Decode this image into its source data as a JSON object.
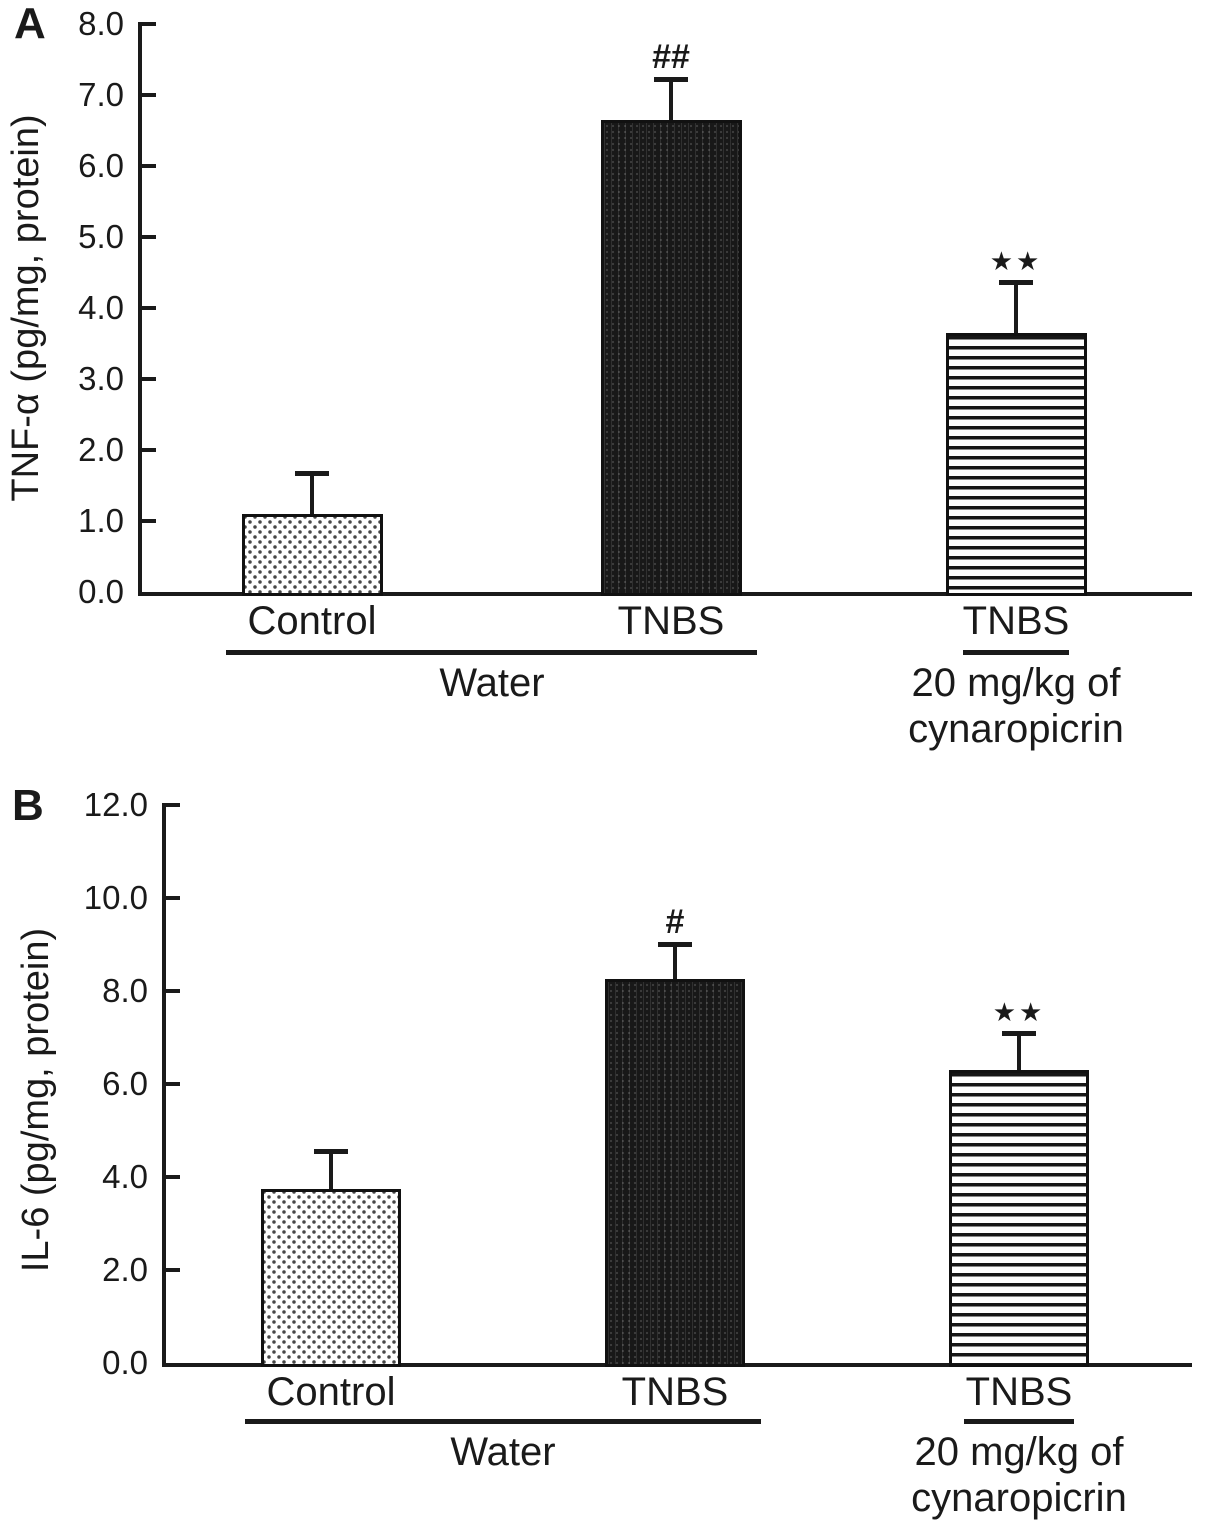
{
  "figure": {
    "background": "#ffffff",
    "ink_color": "#1a1a1a"
  },
  "chart_data": [
    {
      "type": "bar",
      "panel_label": "A",
      "title": "",
      "xlabel": "",
      "ylabel": "TNF-α (pg/mg, protein)",
      "ylim": [
        0.0,
        8.0
      ],
      "ytick_step": 1.0,
      "ytick_labels": [
        "0.0",
        "1.0",
        "2.0",
        "3.0",
        "4.0",
        "5.0",
        "6.0",
        "7.0",
        "8.0"
      ],
      "grid": false,
      "legend": "none",
      "categories": [
        "Control",
        "TNBS",
        "TNBS"
      ],
      "values": [
        1.1,
        6.65,
        3.65
      ],
      "errors_upper": [
        0.6,
        0.6,
        0.75
      ],
      "significance": [
        "",
        "##",
        "**"
      ],
      "significance_display": [
        "",
        "##",
        "★★"
      ],
      "bar_patterns": [
        "dotted-stipple",
        "dark-dotted",
        "horizontal-stripes"
      ],
      "groups": [
        {
          "label_lines": [
            "Water"
          ],
          "bar_indexes": [
            0,
            1
          ]
        },
        {
          "label_lines": [
            "20 mg/kg of",
            "cynaropicrin"
          ],
          "bar_indexes": [
            2
          ]
        }
      ]
    },
    {
      "type": "bar",
      "panel_label": "B",
      "title": "",
      "xlabel": "",
      "ylabel": "IL-6 (pg/mg, protein)",
      "ylim": [
        0.0,
        12.0
      ],
      "ytick_step": 2.0,
      "ytick_labels": [
        "0.0",
        "2.0",
        "4.0",
        "6.0",
        "8.0",
        "10.0",
        "12.0"
      ],
      "grid": false,
      "legend": "none",
      "categories": [
        "Control",
        "TNBS",
        "TNBS"
      ],
      "values": [
        3.75,
        8.25,
        6.3
      ],
      "errors_upper": [
        0.85,
        0.8,
        0.85
      ],
      "significance": [
        "",
        "#",
        "**"
      ],
      "significance_display": [
        "",
        "#",
        "★★"
      ],
      "bar_patterns": [
        "dotted-stipple",
        "dark-dotted",
        "horizontal-stripes"
      ],
      "groups": [
        {
          "label_lines": [
            "Water"
          ],
          "bar_indexes": [
            0,
            1
          ]
        },
        {
          "label_lines": [
            "20 mg/kg of",
            "cynaropicrin"
          ],
          "bar_indexes": [
            2
          ]
        }
      ]
    }
  ]
}
